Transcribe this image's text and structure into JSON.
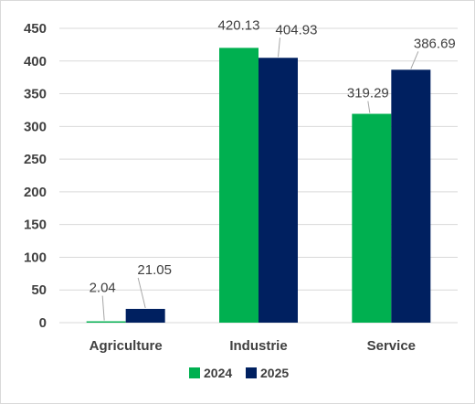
{
  "chart_data": {
    "type": "bar",
    "categories": [
      "Agriculture",
      "Industrie",
      "Service"
    ],
    "series": [
      {
        "name": "2024",
        "color": "#00b050",
        "values": [
          2.04,
          420.13,
          319.29
        ]
      },
      {
        "name": "2025",
        "color": "#002060",
        "values": [
          21.05,
          404.93,
          386.69
        ]
      }
    ],
    "data_labels": [
      [
        "2.04",
        "420.13",
        "319.29"
      ],
      [
        "21.05",
        "404.93",
        "386.69"
      ]
    ],
    "title": "",
    "xlabel": "",
    "ylabel": "",
    "ylim": [
      0,
      450
    ],
    "yticks": [
      0,
      50,
      100,
      150,
      200,
      250,
      300,
      350,
      400,
      450
    ],
    "grid": true,
    "legend": "bottom",
    "colors": {
      "gridline": "#d9d9d9",
      "text": "#404040",
      "leader": "#a6a6a6"
    }
  }
}
